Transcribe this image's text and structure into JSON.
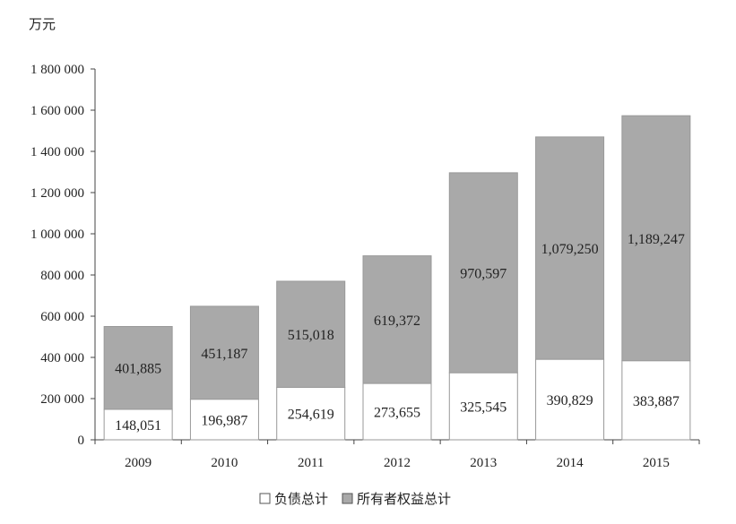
{
  "chart_data": {
    "type": "bar",
    "stacked": true,
    "ylabel": "万元",
    "categories": [
      "2009",
      "2010",
      "2011",
      "2012",
      "2013",
      "2014",
      "2015"
    ],
    "series": [
      {
        "name": "负债总计",
        "color": "#ffffff",
        "values": [
          148051,
          196987,
          254619,
          273655,
          325545,
          390829,
          383887
        ]
      },
      {
        "name": "所有者权益总计",
        "color": "#a9a9a9",
        "values": [
          401885,
          451187,
          515018,
          619372,
          970597,
          1079250,
          1189247
        ]
      }
    ],
    "data_labels": [
      [
        "148,051",
        "196,987",
        "254,619",
        "273,655",
        "325,545",
        "390,829",
        "383,887"
      ],
      [
        "401,885",
        "451,187",
        "515,018",
        "619,372",
        "970,597",
        "1,079,250",
        "1,189,247"
      ]
    ],
    "ylim": [
      0,
      1800000
    ],
    "yticks": [
      0,
      200000,
      400000,
      600000,
      800000,
      1000000,
      1200000,
      1400000,
      1600000,
      1800000
    ],
    "ytick_labels": [
      "0",
      "200 000",
      "400 000",
      "600 000",
      "800 000",
      "1 000 000",
      "1 200 000",
      "1 400 000",
      "1 600 000",
      "1 800 000"
    ],
    "legend_position": "bottom",
    "grid": false
  }
}
